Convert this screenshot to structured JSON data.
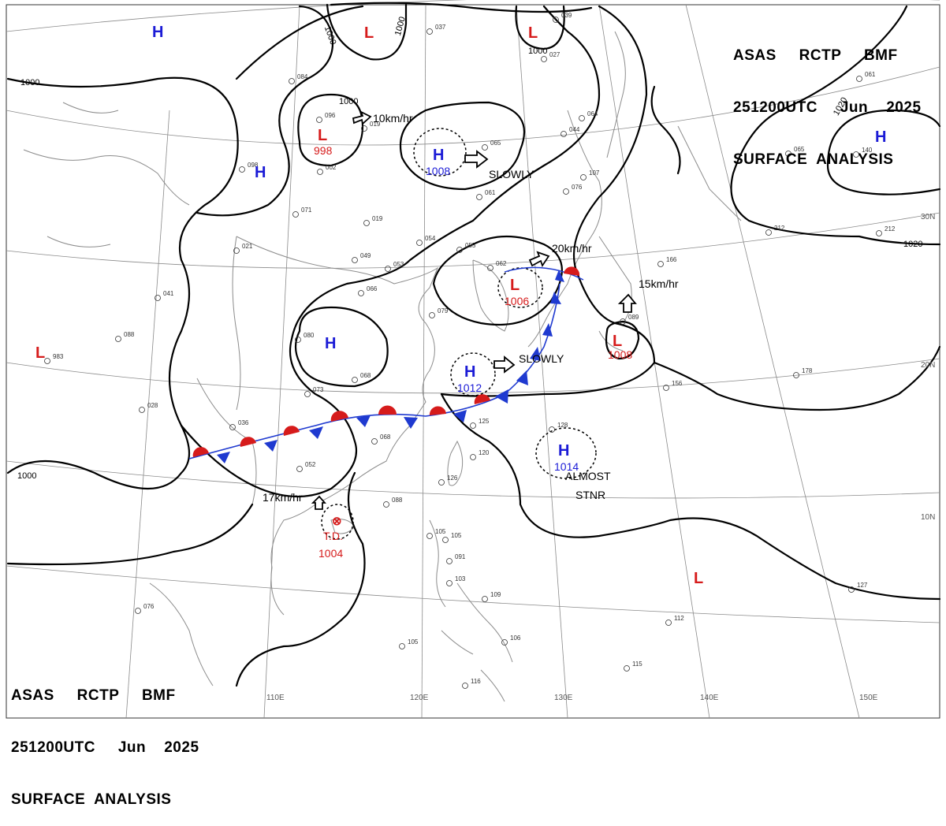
{
  "header": {
    "line1": "ASAS     RCTP     BMF",
    "line2": "251200UTC     Jun    2025",
    "line3": "SURFACE  ANALYSIS"
  },
  "footer": {
    "line1": "ASAS     RCTP     BMF",
    "line2": "251200UTC     Jun    2025",
    "line3": "SURFACE  ANALYSIS"
  },
  "colors": {
    "high": "#1b1bd6",
    "low": "#d61b1b",
    "isobar": "#000000",
    "grid": "#777777",
    "coast": "#888888"
  },
  "lon_labels": [
    "110E",
    "120E",
    "130E",
    "140E",
    "150E"
  ],
  "lat_labels": [
    "30N",
    "20N",
    "10N"
  ],
  "isobar_labels": [
    "1000",
    "1000",
    "1000",
    "1000",
    "1000",
    "1000",
    "1020",
    "1020"
  ],
  "systems": [
    {
      "symbol": "H",
      "kind": "high"
    },
    {
      "symbol": "H",
      "kind": "high"
    },
    {
      "symbol": "H",
      "kind": "high",
      "pressure": "1008"
    },
    {
      "symbol": "H",
      "kind": "high"
    },
    {
      "symbol": "H",
      "kind": "high",
      "pressure": "1012"
    },
    {
      "symbol": "H",
      "kind": "high",
      "pressure": "1014"
    },
    {
      "symbol": "H",
      "kind": "high"
    },
    {
      "symbol": "L",
      "kind": "low"
    },
    {
      "symbol": "L",
      "kind": "low"
    },
    {
      "symbol": "L",
      "kind": "low",
      "pressure": "998"
    },
    {
      "symbol": "L",
      "kind": "low",
      "pressure": "1006"
    },
    {
      "symbol": "L",
      "kind": "low",
      "pressure": "1008"
    },
    {
      "symbol": "L",
      "kind": "low"
    },
    {
      "symbol": "L",
      "kind": "low"
    },
    {
      "symbol": "⊗",
      "kind": "td",
      "name": "T.D.",
      "pressure": "1004"
    }
  ],
  "motions": [
    "10km/hr",
    "SLOWLY",
    "20km/hr",
    "15km/hr",
    "SLOWLY",
    "ALMOST",
    "STNR",
    "17km/hr"
  ],
  "stations": [
    "037",
    "065",
    "084",
    "096",
    "019",
    "098",
    "002",
    "071",
    "019",
    "021",
    "049",
    "054",
    "055",
    "062",
    "053",
    "066",
    "079",
    "041",
    "080",
    "088",
    "068",
    "073",
    "036",
    "068",
    "052",
    "088",
    "028",
    "983",
    "105",
    "125",
    "120",
    "126",
    "128",
    "156",
    "178",
    "166",
    "212",
    "212",
    "140",
    "112",
    "115",
    "106",
    "109",
    "116",
    "076",
    "027",
    "044",
    "064",
    "061",
    "076",
    "107",
    "039",
    "061",
    "065",
    "089",
    "105",
    "091",
    "103",
    "105",
    "127"
  ]
}
